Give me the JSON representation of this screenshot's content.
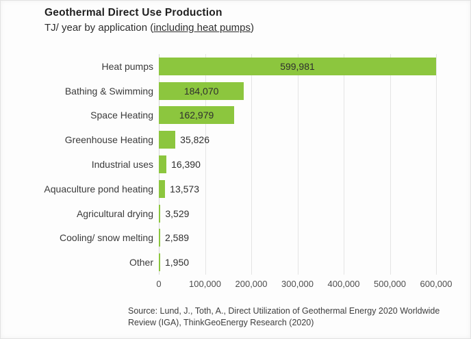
{
  "header": {
    "title": "Geothermal Direct Use Production",
    "subtitle_prefix": "TJ/ year by application (",
    "subtitle_underlined": "including heat pumps",
    "subtitle_suffix": ")"
  },
  "chart_data": {
    "type": "bar",
    "orientation": "horizontal",
    "title": "Geothermal Direct Use Production",
    "subtitle": "TJ/ year by application (including heat pumps)",
    "xlabel": "",
    "ylabel": "",
    "categories": [
      "Heat pumps",
      "Bathing & Swimming",
      "Space Heating",
      "Greenhouse Heating",
      "Industrial uses",
      "Aquaculture pond heating",
      "Agricultural drying",
      "Cooling/ snow melting",
      "Other"
    ],
    "values": [
      599981,
      184070,
      162979,
      35826,
      16390,
      13573,
      3529,
      2589,
      1950
    ],
    "value_labels": [
      "599,981",
      "184,070",
      "162,979",
      "35,826",
      "16,390",
      "13,573",
      "3,529",
      "2,589",
      "1,950"
    ],
    "xlim": [
      0,
      600000
    ],
    "x_ticks": [
      0,
      100000,
      200000,
      300000,
      400000,
      500000,
      600000
    ],
    "x_tick_labels": [
      "0",
      "100,000",
      "200,000",
      "300,000",
      "400,000",
      "500,000",
      "600,000"
    ],
    "grid": true,
    "legend": "none",
    "bar_color": "#8CC63E",
    "axis_line_color": "#d6d6d6",
    "gridline_color": "#e4e4e4"
  },
  "footer": {
    "source_line1": "Source: Lund, J., Toth, A., Direct Utilization of Geothermal Energy 2020 Worldwide",
    "source_line2": "Review (IGA), ThinkGeoEnergy Research (2020)"
  }
}
